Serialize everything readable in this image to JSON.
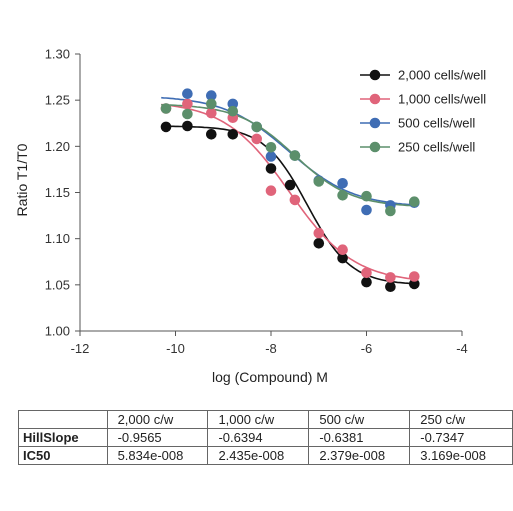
{
  "chart_data": {
    "type": "scatter",
    "xlabel": "log (Compound) M",
    "ylabel": "Ratio T1/T0",
    "xlim": [
      -12,
      -4
    ],
    "ylim": [
      1.0,
      1.3
    ],
    "xticks": [
      -12,
      -10,
      -8,
      -6,
      -4
    ],
    "yticks": [
      1.0,
      1.05,
      1.1,
      1.15,
      1.2,
      1.25,
      1.3
    ],
    "xtick_labels": [
      "-12",
      "-10",
      "-8",
      "-6",
      "-4"
    ],
    "ytick_labels": [
      "1.00",
      "1.05",
      "1.10",
      "1.15",
      "1.20",
      "1.25",
      "1.30"
    ],
    "grid": false,
    "legend_position": "top-right",
    "series": [
      {
        "name": "2,000 cells/well",
        "color": "#111111",
        "points": [
          [
            -10.2,
            1.221
          ],
          [
            -9.75,
            1.222
          ],
          [
            -9.25,
            1.213
          ],
          [
            -8.8,
            1.213
          ],
          [
            -8.0,
            1.176
          ],
          [
            -7.6,
            1.158
          ],
          [
            -7.0,
            1.095
          ],
          [
            -6.5,
            1.079
          ],
          [
            -6.0,
            1.053
          ],
          [
            -5.5,
            1.048
          ],
          [
            -5.0,
            1.051
          ]
        ],
        "curve": {
          "top": 1.222,
          "bottom": 1.05,
          "logIC50": -7.234,
          "hill": -0.9565
        }
      },
      {
        "name": "1,000 cells/well",
        "color": "#e0647a",
        "points": [
          [
            -10.2,
            1.241
          ],
          [
            -9.75,
            1.246
          ],
          [
            -9.25,
            1.236
          ],
          [
            -8.8,
            1.231
          ],
          [
            -8.3,
            1.208
          ],
          [
            -8.0,
            1.152
          ],
          [
            -7.5,
            1.142
          ],
          [
            -7.0,
            1.106
          ],
          [
            -6.5,
            1.088
          ],
          [
            -6.0,
            1.063
          ],
          [
            -5.5,
            1.058
          ],
          [
            -5.0,
            1.059
          ]
        ],
        "curve": {
          "top": 1.249,
          "bottom": 1.052,
          "logIC50": -7.613,
          "hill": -0.6394
        }
      },
      {
        "name": "500 cells/well",
        "color": "#3f6db4",
        "points": [
          [
            -9.75,
            1.257
          ],
          [
            -9.25,
            1.255
          ],
          [
            -8.8,
            1.246
          ],
          [
            -8.3,
            1.221
          ],
          [
            -8.0,
            1.189
          ],
          [
            -7.5,
            1.19
          ],
          [
            -7.0,
            1.163
          ],
          [
            -6.5,
            1.16
          ],
          [
            -6.0,
            1.131
          ],
          [
            -5.5,
            1.136
          ],
          [
            -5.0,
            1.139
          ]
        ],
        "curve": {
          "top": 1.255,
          "bottom": 1.134,
          "logIC50": -7.624,
          "hill": -0.6381
        }
      },
      {
        "name": "250 cells/well",
        "color": "#5c8f6b",
        "points": [
          [
            -10.2,
            1.241
          ],
          [
            -9.75,
            1.235
          ],
          [
            -9.25,
            1.246
          ],
          [
            -8.8,
            1.238
          ],
          [
            -8.3,
            1.221
          ],
          [
            -8.0,
            1.199
          ],
          [
            -7.5,
            1.19
          ],
          [
            -7.0,
            1.162
          ],
          [
            -6.5,
            1.147
          ],
          [
            -6.0,
            1.146
          ],
          [
            -5.5,
            1.13
          ],
          [
            -5.0,
            1.14
          ]
        ],
        "curve": {
          "top": 1.246,
          "bottom": 1.134,
          "logIC50": -7.499,
          "hill": -0.7347
        }
      }
    ]
  },
  "results_table": {
    "columns": [
      "",
      "2,000 c/w",
      "1,000 c/w",
      "500 c/w",
      "250 c/w"
    ],
    "rows": [
      {
        "label": "HillSlope",
        "values": [
          "-0.9565",
          "-0.6394",
          "-0.6381",
          "-0.7347"
        ]
      },
      {
        "label": "IC50",
        "values": [
          "5.834e-008",
          "2.435e-008",
          "2.379e-008",
          "3.169e-008"
        ]
      }
    ]
  }
}
